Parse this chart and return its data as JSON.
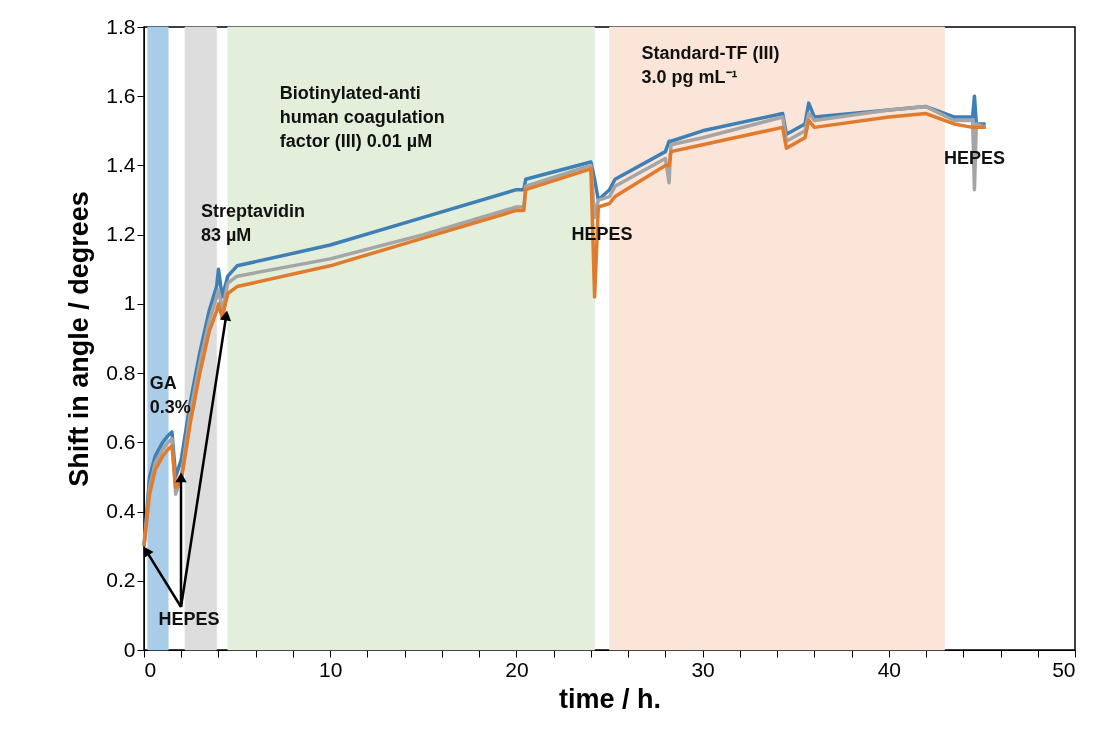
{
  "chart_data": {
    "type": "line",
    "xlabel": "time / h.",
    "ylabel": "Shift in angle / degrees",
    "xlim": [
      0,
      50
    ],
    "ylim": [
      0,
      1.8
    ],
    "xticks": [
      0,
      {
        "value": 2,
        "label": null
      },
      {
        "value": 4,
        "label": null
      },
      {
        "value": 6,
        "label": null
      },
      {
        "value": 8,
        "label": null
      },
      10,
      {
        "value": 12,
        "label": null
      },
      {
        "value": 14,
        "label": null
      },
      {
        "value": 16,
        "label": null
      },
      {
        "value": 18,
        "label": null
      },
      20,
      {
        "value": 22,
        "label": null
      },
      {
        "value": 24,
        "label": null
      },
      {
        "value": 26,
        "label": null
      },
      {
        "value": 28,
        "label": null
      },
      30,
      {
        "value": 32,
        "label": null
      },
      {
        "value": 34,
        "label": null
      },
      {
        "value": 36,
        "label": null
      },
      {
        "value": 38,
        "label": null
      },
      40,
      {
        "value": 42,
        "label": null
      },
      {
        "value": 44,
        "label": null
      },
      {
        "value": 46,
        "label": null
      },
      {
        "value": 48,
        "label": null
      },
      50
    ],
    "yticks": [
      0,
      0.2,
      0.4,
      0.6,
      0.8,
      1,
      1.2,
      1.4,
      1.6,
      1.8
    ],
    "grid": false,
    "line_style": "solid",
    "marker": "none",
    "x": [
      0,
      0.3,
      0.6,
      1.0,
      1.3,
      1.5,
      1.7,
      2.0,
      2.5,
      3.0,
      3.5,
      3.9,
      4.0,
      4.2,
      4.5,
      5,
      10,
      15,
      20,
      20.4,
      20.5,
      24,
      24.2,
      24.4,
      25,
      25.3,
      28,
      28.2,
      28.3,
      30,
      34.3,
      34.5,
      35.5,
      35.7,
      36,
      40,
      42,
      43.5,
      44.5,
      44.6,
      44.7,
      45.2
    ],
    "series": [
      {
        "color": "#3f7fb5",
        "values": [
          0.3,
          0.5,
          0.56,
          0.6,
          0.62,
          0.63,
          0.5,
          0.55,
          0.72,
          0.86,
          0.98,
          1.05,
          1.1,
          1.02,
          1.08,
          1.11,
          1.17,
          1.25,
          1.33,
          1.33,
          1.36,
          1.41,
          1.36,
          1.3,
          1.33,
          1.36,
          1.44,
          1.47,
          1.47,
          1.5,
          1.55,
          1.49,
          1.52,
          1.58,
          1.54,
          1.56,
          1.57,
          1.54,
          1.54,
          1.6,
          1.52,
          1.52
        ]
      },
      {
        "color": "#a5a5a5",
        "values": [
          0.3,
          0.47,
          0.54,
          0.58,
          0.6,
          0.61,
          0.45,
          0.5,
          0.69,
          0.83,
          0.95,
          1.02,
          1.04,
          0.98,
          1.06,
          1.08,
          1.13,
          1.2,
          1.28,
          1.28,
          1.34,
          1.4,
          1.25,
          1.3,
          1.31,
          1.34,
          1.42,
          1.35,
          1.46,
          1.48,
          1.54,
          1.47,
          1.5,
          1.55,
          1.53,
          1.56,
          1.57,
          1.53,
          1.53,
          1.33,
          1.52,
          1.51
        ]
      },
      {
        "color": "#e07b2e",
        "values": [
          0.3,
          0.45,
          0.52,
          0.56,
          0.58,
          0.59,
          0.47,
          0.49,
          0.66,
          0.8,
          0.92,
          0.98,
          1.0,
          0.96,
          1.03,
          1.05,
          1.11,
          1.19,
          1.27,
          1.27,
          1.33,
          1.39,
          1.02,
          1.28,
          1.29,
          1.31,
          1.4,
          1.4,
          1.44,
          1.46,
          1.51,
          1.45,
          1.48,
          1.53,
          1.51,
          1.54,
          1.55,
          1.52,
          1.51,
          1.51,
          1.51,
          1.51
        ]
      }
    ],
    "bands": [
      {
        "axis": "x",
        "from": 0.2,
        "to": 1.3,
        "label": "GA\n0.3%",
        "color": "#a9cde9"
      },
      {
        "axis": "x",
        "from": 2.2,
        "to": 3.9,
        "label": "Streptavidin\n83 µM",
        "color": "#dddddd"
      },
      {
        "axis": "x",
        "from": 4.5,
        "to": 24.2,
        "label": "Biotinylated-anti\nhuman coagulation\nfactor (III) 0.01 µM",
        "color": "#e3efdb"
      },
      {
        "axis": "x",
        "from": 25.0,
        "to": 43.0,
        "label": "Standard-TF  (III)\n3.0 pg mL⁻¹",
        "color": "#fbe5d8"
      }
    ],
    "annotations": [
      {
        "text": "HEPES",
        "x": 0,
        "y": 0.3
      },
      {
        "text": "HEPES",
        "x": 24.6,
        "y": 1.2
      },
      {
        "text": "HEPES",
        "x": 44.6,
        "y": 1.42
      }
    ]
  }
}
